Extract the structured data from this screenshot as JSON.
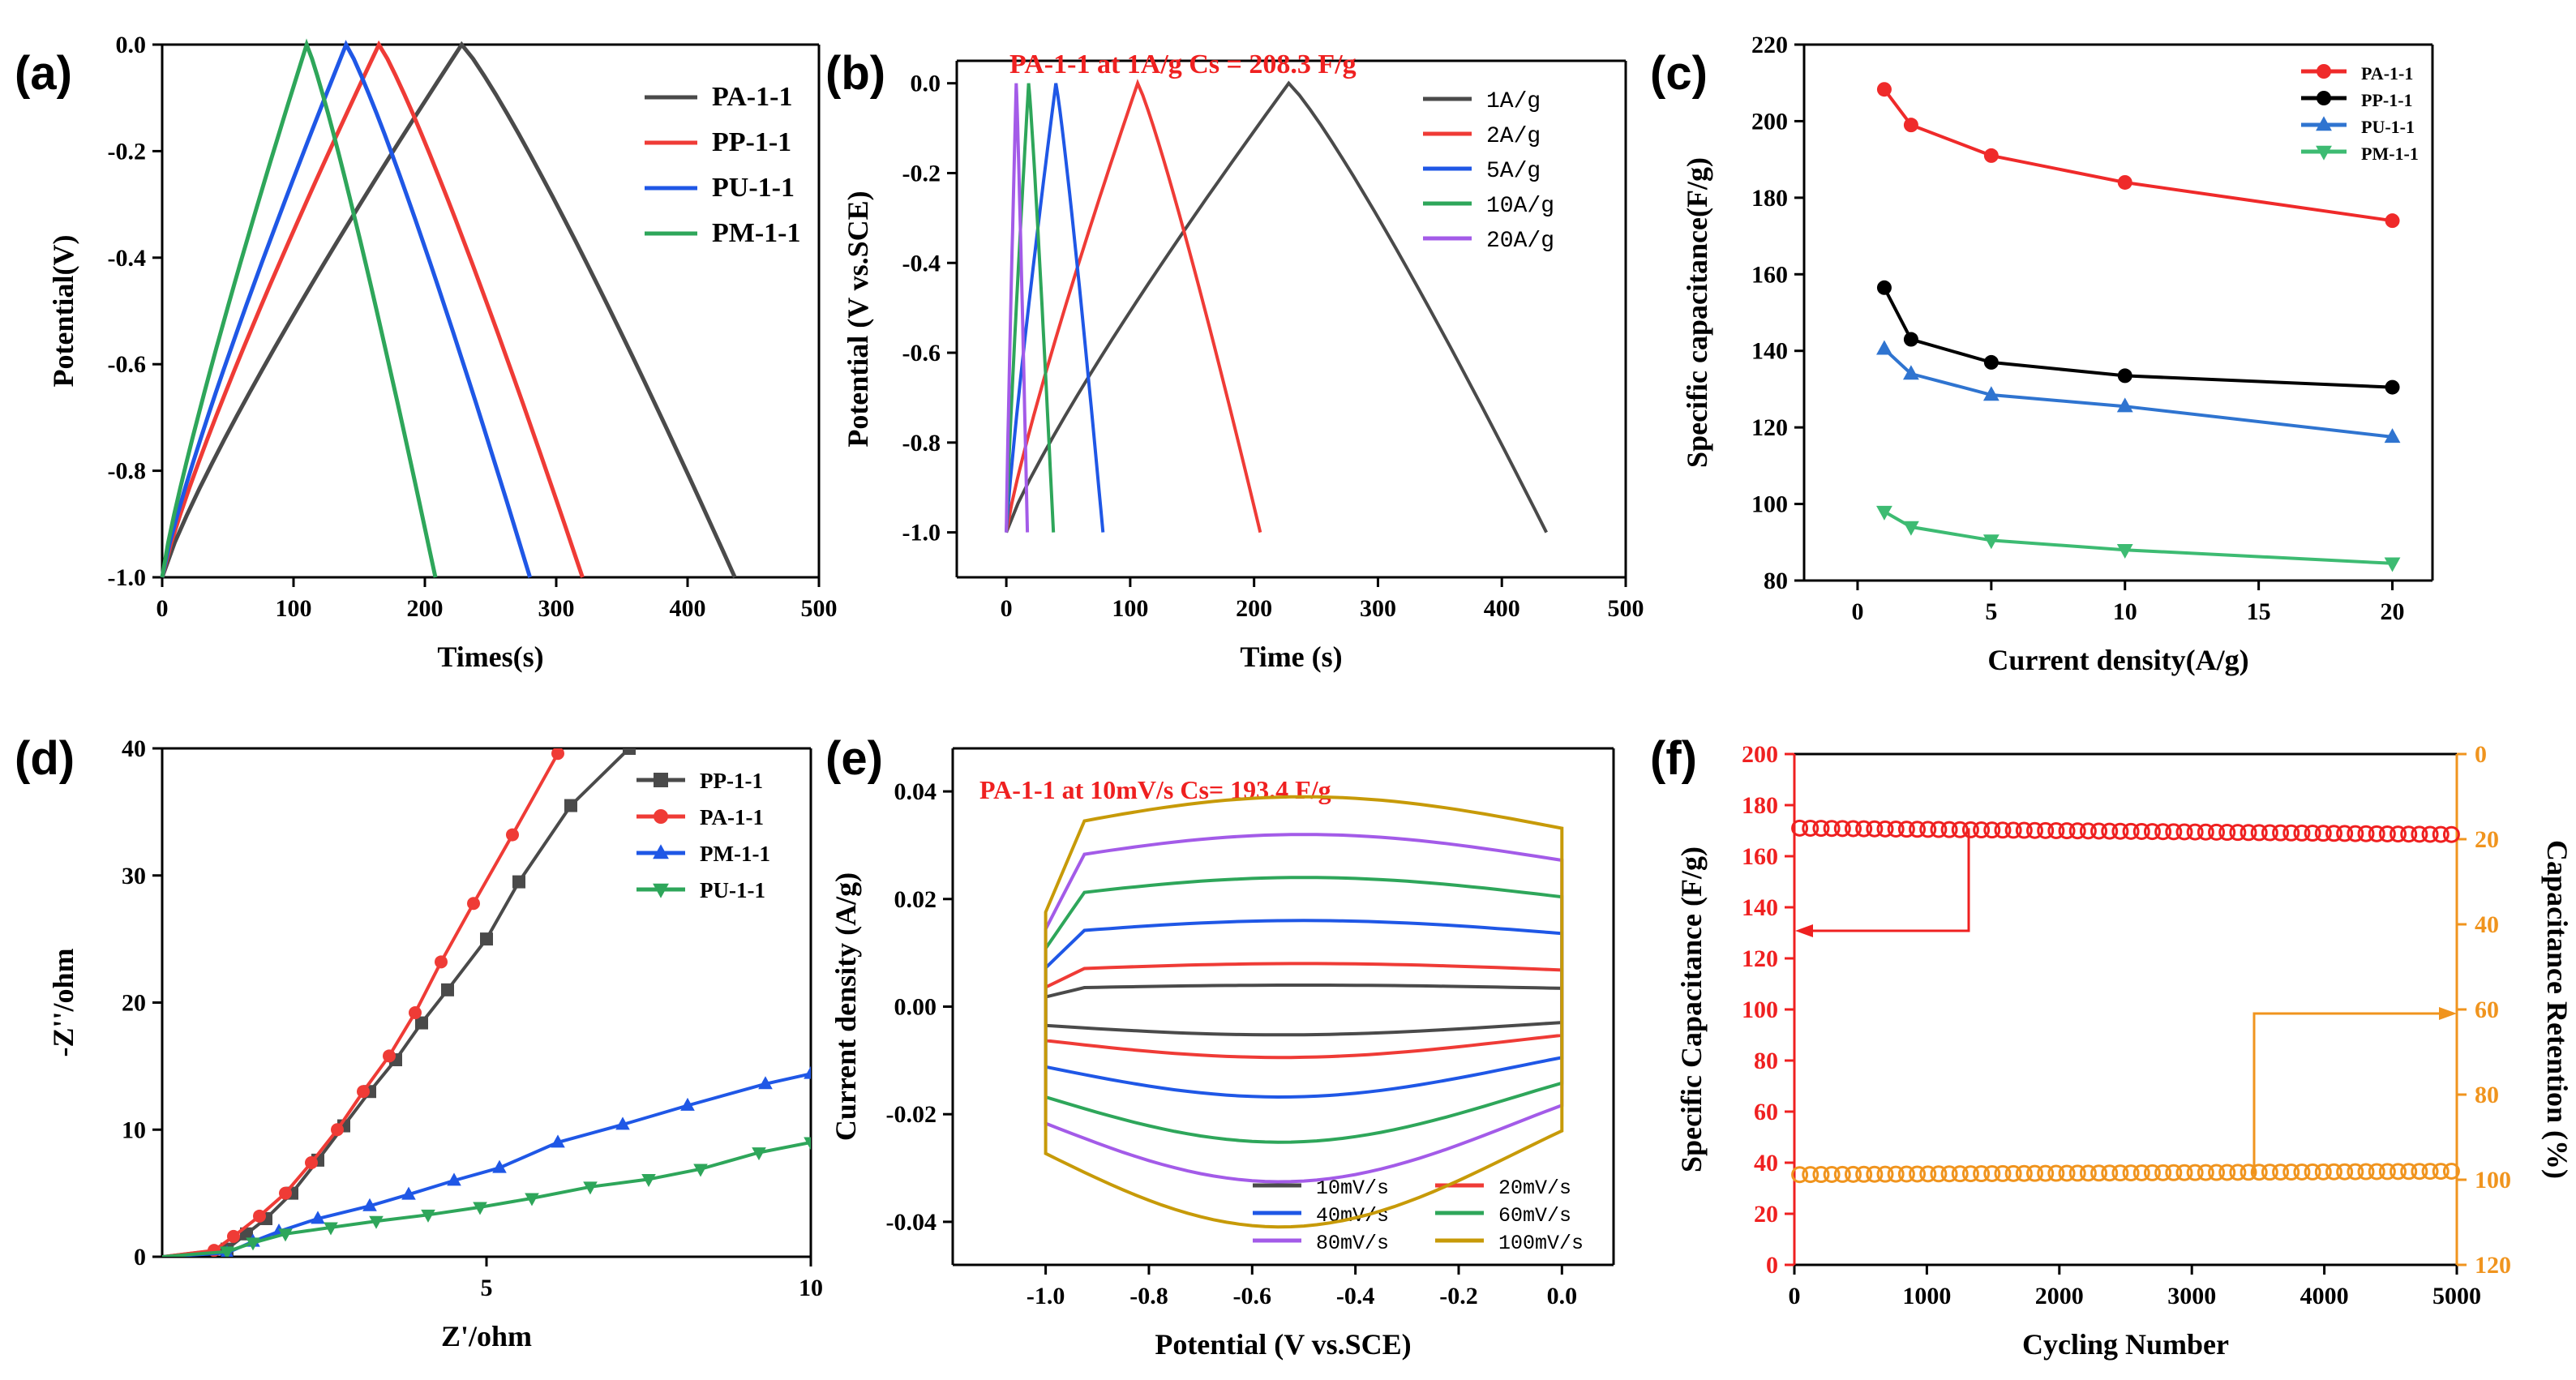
{
  "chart_data": [
    {
      "panel": "(a)",
      "type": "line",
      "title": "",
      "xlabel": "Times(s)",
      "ylabel": "Potential(V)",
      "xlim": [
        0,
        500
      ],
      "ylim": [
        -1.0,
        0.0
      ],
      "xticks": [
        0,
        100,
        200,
        300,
        400,
        500
      ],
      "yticks": [
        -1.0,
        -0.8,
        -0.6,
        -0.4,
        -0.2,
        0.0
      ],
      "xtick_labels": [
        "0",
        "100",
        "200",
        "300",
        "400",
        "500"
      ],
      "ytick_labels": [
        "-1.0",
        "-0.8",
        "-0.6",
        "-0.4",
        "-0.2",
        "0.0"
      ],
      "legend_position": "top-right",
      "series": [
        {
          "name": "PA-1-1",
          "color": "#4a4a4a",
          "shape": "gcd",
          "charge_end": 228,
          "discharge_end": 436
        },
        {
          "name": "PP-1-1",
          "color": "#ef3b36",
          "shape": "gcd",
          "charge_end": 165,
          "discharge_end": 320
        },
        {
          "name": "PU-1-1",
          "color": "#1f57e6",
          "shape": "gcd",
          "charge_end": 140,
          "discharge_end": 280
        },
        {
          "name": "PM-1-1",
          "color": "#2ea65a",
          "shape": "gcd",
          "charge_end": 110,
          "discharge_end": 208
        }
      ]
    },
    {
      "panel": "(b)",
      "type": "line",
      "title": "PA-1-1 at 1A/g Cs = 208.3 F/g",
      "xlabel": "Time (s)",
      "ylabel": "Potential (V vs.SCE)",
      "xlim": [
        -40,
        500
      ],
      "ylim": [
        -1.1,
        0.05
      ],
      "xticks": [
        0,
        100,
        200,
        300,
        400,
        500
      ],
      "yticks": [
        -1.0,
        -0.8,
        -0.6,
        -0.4,
        -0.2,
        0.0
      ],
      "xtick_labels": [
        "0",
        "100",
        "200",
        "300",
        "400",
        "500"
      ],
      "ytick_labels": [
        "-1.0",
        "-0.8",
        "-0.6",
        "-0.4",
        "-0.2",
        "0.0"
      ],
      "legend_position": "top-right",
      "series": [
        {
          "name": "1A/g",
          "color": "#4a4a4a",
          "shape": "gcd",
          "charge_end": 228,
          "discharge_end": 436
        },
        {
          "name": "2A/g",
          "color": "#ef3b36",
          "shape": "gcd",
          "charge_end": 106,
          "discharge_end": 205
        },
        {
          "name": "5A/g",
          "color": "#1f57e6",
          "shape": "gcd",
          "charge_end": 40,
          "discharge_end": 78
        },
        {
          "name": "10A/g",
          "color": "#2ea65a",
          "shape": "gcd",
          "charge_end": 18,
          "discharge_end": 38
        },
        {
          "name": "20A/g",
          "color": "#a35be8",
          "shape": "gcd",
          "charge_end": 8,
          "discharge_end": 17
        }
      ]
    },
    {
      "panel": "(c)",
      "type": "line",
      "xlabel": "Current density(A/g)",
      "ylabel": "Specific capacitance(F/g)",
      "xlim": [
        -2,
        21.5
      ],
      "ylim": [
        80,
        220
      ],
      "xticks": [
        0,
        5,
        10,
        15,
        20
      ],
      "yticks": [
        80,
        100,
        120,
        140,
        160,
        180,
        200,
        220
      ],
      "xtick_labels": [
        "0",
        "5",
        "10",
        "15",
        "20"
      ],
      "ytick_labels": [
        "80",
        "100",
        "120",
        "140",
        "160",
        "180",
        "200",
        "220"
      ],
      "legend_position": "top-right",
      "x": [
        1,
        2,
        5,
        10,
        20
      ],
      "series": [
        {
          "name": "PA-1-1",
          "color": "#ef2a2a",
          "marker": "circle",
          "values": [
            208.3,
            199,
            191,
            184,
            174
          ]
        },
        {
          "name": "PP-1-1",
          "color": "#000000",
          "marker": "circle",
          "values": [
            156.5,
            143,
            137,
            133.5,
            130.5
          ]
        },
        {
          "name": "PU-1-1",
          "color": "#2f74d0",
          "marker": "triangle-up",
          "values": [
            140.5,
            134,
            128.5,
            125.5,
            117.5
          ]
        },
        {
          "name": "PM-1-1",
          "color": "#3dbb72",
          "marker": "triangle-down",
          "values": [
            98,
            94,
            90.5,
            88,
            84.5
          ]
        }
      ]
    },
    {
      "panel": "(d)",
      "type": "scatter",
      "xlabel": "Z'/ohm",
      "ylabel": "-Z''/ohm",
      "xlim": [
        0,
        10
      ],
      "ylim": [
        0,
        40
      ],
      "xticks": [
        5,
        10
      ],
      "yticks": [
        0,
        10,
        20,
        30,
        40
      ],
      "xtick_labels": [
        "5",
        "10"
      ],
      "ytick_labels": [
        "0",
        "10",
        "20",
        "30",
        "40"
      ],
      "legend_position": "top-right",
      "series": [
        {
          "name": "PP-1-1",
          "color": "#4a4a4a",
          "marker": "square",
          "points": [
            [
              1.0,
              0.6
            ],
            [
              1.3,
              1.8
            ],
            [
              1.6,
              3.0
            ],
            [
              2.0,
              5.0
            ],
            [
              2.4,
              7.6
            ],
            [
              2.8,
              10.3
            ],
            [
              3.2,
              13.0
            ],
            [
              3.6,
              15.5
            ],
            [
              4.0,
              18.4
            ],
            [
              4.4,
              21.0
            ],
            [
              5.0,
              25.0
            ],
            [
              5.5,
              29.5
            ],
            [
              6.3,
              35.5
            ],
            [
              7.2,
              40.0
            ]
          ]
        },
        {
          "name": "PA-1-1",
          "color": "#ef3b36",
          "marker": "circle",
          "points": [
            [
              0.8,
              0.5
            ],
            [
              1.1,
              1.6
            ],
            [
              1.5,
              3.2
            ],
            [
              1.9,
              5.0
            ],
            [
              2.3,
              7.4
            ],
            [
              2.7,
              10.0
            ],
            [
              3.1,
              13.0
            ],
            [
              3.5,
              15.8
            ],
            [
              3.9,
              19.2
            ],
            [
              4.3,
              23.2
            ],
            [
              4.8,
              27.8
            ],
            [
              5.4,
              33.2
            ],
            [
              6.1,
              39.6
            ]
          ]
        },
        {
          "name": "PM-1-1",
          "color": "#1f57e6",
          "marker": "triangle-up",
          "points": [
            [
              1.0,
              0.3
            ],
            [
              1.4,
              1.2
            ],
            [
              1.8,
              2.0
            ],
            [
              2.4,
              3.0
            ],
            [
              3.2,
              4.0
            ],
            [
              3.8,
              4.9
            ],
            [
              4.5,
              6.0
            ],
            [
              5.2,
              7.0
            ],
            [
              6.1,
              9.0
            ],
            [
              7.1,
              10.4
            ],
            [
              8.1,
              11.9
            ],
            [
              9.3,
              13.6
            ],
            [
              10.0,
              14.4
            ]
          ]
        },
        {
          "name": "PU-1-1",
          "color": "#2ea65a",
          "marker": "triangle-down",
          "points": [
            [
              1.0,
              0.4
            ],
            [
              1.4,
              1.1
            ],
            [
              1.9,
              1.8
            ],
            [
              2.6,
              2.3
            ],
            [
              3.3,
              2.8
            ],
            [
              4.1,
              3.3
            ],
            [
              4.9,
              3.9
            ],
            [
              5.7,
              4.6
            ],
            [
              6.6,
              5.5
            ],
            [
              7.5,
              6.1
            ],
            [
              8.3,
              6.9
            ],
            [
              9.2,
              8.2
            ],
            [
              10.0,
              9.0
            ]
          ]
        }
      ]
    },
    {
      "panel": "(e)",
      "type": "line",
      "title": "PA-1-1 at 10mV/s Cs= 193.4 F/g",
      "xlabel": "Potential (V vs.SCE)",
      "ylabel": "Current density (A/g)",
      "xlim": [
        -1.18,
        0.1
      ],
      "ylim": [
        -0.048,
        0.048
      ],
      "xticks": [
        -1.0,
        -0.8,
        -0.6,
        -0.4,
        -0.2,
        0.0
      ],
      "yticks": [
        -0.04,
        -0.02,
        0.0,
        0.02,
        0.04
      ],
      "xtick_labels": [
        "-1.0",
        "-0.8",
        "-0.6",
        "-0.4",
        "-0.2",
        "0.0"
      ],
      "ytick_labels": [
        "-0.04",
        "-0.02",
        "0.00",
        "0.02",
        "0.04"
      ],
      "legend_position": "bottom-right",
      "series": [
        {
          "name": "10mV/s",
          "color": "#4a4a4a",
          "shape": "cv",
          "upper": 0.004,
          "lower": -0.005
        },
        {
          "name": "20mV/s",
          "color": "#ef3b36",
          "shape": "cv",
          "upper": 0.008,
          "lower": -0.009
        },
        {
          "name": "40mV/s",
          "color": "#1f57e6",
          "shape": "cv",
          "upper": 0.016,
          "lower": -0.016
        },
        {
          "name": "60mV/s",
          "color": "#2ea65a",
          "shape": "cv",
          "upper": 0.024,
          "lower": -0.024
        },
        {
          "name": "80mV/s",
          "color": "#a35be8",
          "shape": "cv",
          "upper": 0.032,
          "lower": -0.031
        },
        {
          "name": "100mV/s",
          "color": "#c79a08",
          "shape": "cv",
          "upper": 0.039,
          "lower": -0.039
        }
      ]
    },
    {
      "panel": "(f)",
      "type": "scatter",
      "xlabel": "Cycling Number",
      "ylabel": "Specific Capacitance (F/g)",
      "ylabel_right": "Capacitance Retention (%)",
      "xlim": [
        0,
        5000
      ],
      "ylim": [
        0,
        200
      ],
      "ylim_right": [
        0,
        120
      ],
      "xticks": [
        0,
        1000,
        2000,
        3000,
        4000,
        5000
      ],
      "yticks": [
        0,
        20,
        40,
        60,
        80,
        100,
        120,
        140,
        160,
        180,
        200
      ],
      "yticks_right": [
        0,
        20,
        40,
        60,
        80,
        100,
        120
      ],
      "xtick_labels": [
        "0",
        "1000",
        "2000",
        "3000",
        "4000",
        "5000"
      ],
      "ytick_labels": [
        "0",
        "20",
        "40",
        "60",
        "80",
        "100",
        "120",
        "140",
        "160",
        "180",
        "200"
      ],
      "ytick_labels_right": [
        "0",
        "20",
        "40",
        "60",
        "80",
        "100",
        "120"
      ],
      "right_axis_inverted": true,
      "series": [
        {
          "name": "Specific Capacitance",
          "color": "#ef2020",
          "axis": "left",
          "marker": "circle",
          "start": 171,
          "end": 168.5,
          "count": 62
        },
        {
          "name": "Capacitance Retention",
          "color": "#f0941e",
          "axis": "right",
          "marker": "circle",
          "start": 98.8,
          "end": 98.0,
          "count": 62
        }
      ]
    }
  ],
  "colors": {
    "axis": "#000000",
    "panel_c_pa_line": "#ef2a2a",
    "panel_f_left_axis": "#ef2020",
    "panel_f_right_axis": "#f0941e",
    "title_red": "#ef2020"
  }
}
